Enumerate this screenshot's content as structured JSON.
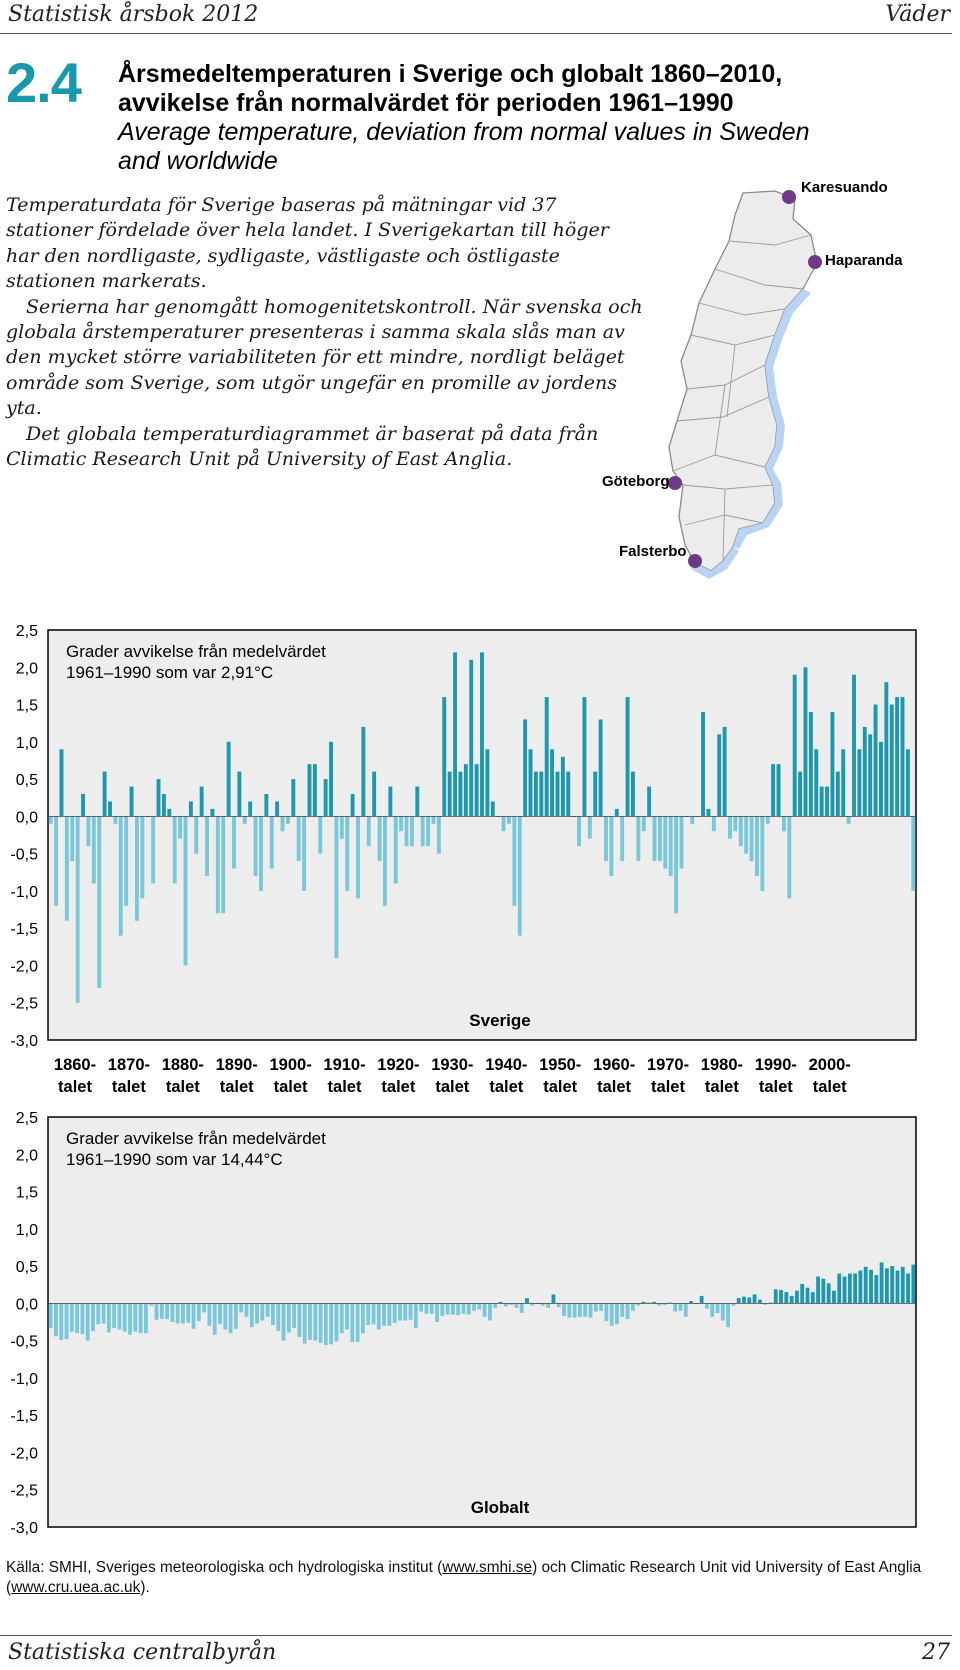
{
  "header": {
    "left": "Statistisk årsbok 2012",
    "right": "Väder"
  },
  "figure": {
    "number": "2.4",
    "title_sv_1": "Årsmedeltemperaturen i Sverige och globalt 1860–2010,",
    "title_sv_2": "avvikelse från normalvärdet för perioden 1961–1990",
    "title_en_1": "Average temperature, deviation from normal values in Sweden",
    "title_en_2": "and worldwide"
  },
  "intro": {
    "p1": "Temperaturdata för Sverige baseras på mätningar vid 37 stationer fördelade över hela landet. I Sverigekartan till höger har den nordligaste, sydligaste, västligaste och östligaste stationen markerats.",
    "p2": "Serierna har genomgått homogenitetskontroll. När svenska och globala årstemperaturer presenteras i samma skala slås man av den mycket större variabiliteten för ett mindre, nordligt beläget område som Sverige, som utgör ungefär en promille av jordens yta.",
    "p3": "Det globala temperaturdiagrammet är baserat på data från Climatic Research Unit på University of East Anglia."
  },
  "map": {
    "stations": [
      {
        "name": "Karesuando"
      },
      {
        "name": "Haparanda"
      },
      {
        "name": "Göteborg"
      },
      {
        "name": "Falsterbo"
      }
    ],
    "colors": {
      "land": "#ececec",
      "border": "#8a8a8a",
      "water": "#b9d4f2",
      "marker": "#6d3b83"
    }
  },
  "chart_data": [
    {
      "type": "bar",
      "title": "Sverige",
      "annotation_1": "Grader avvikelse från medelvärdet",
      "annotation_2": "1961–1990 som var 2,91°C",
      "x_start": 1860,
      "x_end": 2011,
      "decade_labels": [
        [
          "1860-",
          "talet"
        ],
        [
          "1870-",
          "talet"
        ],
        [
          "1880-",
          "talet"
        ],
        [
          "1890-",
          "talet"
        ],
        [
          "1900-",
          "talet"
        ],
        [
          "1910-",
          "talet"
        ],
        [
          "1920-",
          "talet"
        ],
        [
          "1930-",
          "talet"
        ],
        [
          "1940-",
          "talet"
        ],
        [
          "1950-",
          "talet"
        ],
        [
          "1960-",
          "talet"
        ],
        [
          "1970-",
          "talet"
        ],
        [
          "1980-",
          "talet"
        ],
        [
          "1990-",
          "talet"
        ],
        [
          "2000-",
          "talet"
        ]
      ],
      "y_ticks": [
        "2,5",
        "2,0",
        "1,5",
        "1,0",
        "0,5",
        "0,0",
        "-0,5",
        "-1,0",
        "-1,5",
        "-2,0",
        "-2,5",
        "-3,0"
      ],
      "ylim": [
        -3.0,
        2.5
      ],
      "grid": false,
      "colors": {
        "positive": "#1c97ad",
        "negative": "#79c7d8",
        "plot_bg": "#ededed"
      },
      "values": [
        -0.1,
        -1.2,
        0.9,
        -1.4,
        -0.6,
        -2.5,
        0.3,
        -0.4,
        -0.9,
        -2.3,
        0.6,
        0.2,
        -0.1,
        -1.6,
        -1.2,
        0.4,
        -1.4,
        -1.1,
        0.0,
        -0.9,
        0.5,
        0.3,
        0.1,
        -0.9,
        -0.3,
        -2.0,
        0.2,
        -0.5,
        0.4,
        -0.8,
        0.1,
        -1.3,
        -1.3,
        1.0,
        -0.7,
        0.6,
        -0.1,
        0.2,
        -0.8,
        -1.0,
        0.3,
        -0.7,
        0.2,
        -0.2,
        -0.1,
        0.5,
        -0.6,
        -1.0,
        0.7,
        0.7,
        -0.5,
        0.5,
        1.0,
        -1.9,
        -0.3,
        -1.0,
        0.3,
        -1.1,
        1.2,
        -0.4,
        0.6,
        -0.6,
        -1.2,
        0.4,
        -0.9,
        -0.2,
        -0.4,
        -0.4,
        0.4,
        -0.4,
        -0.4,
        -0.1,
        -0.5,
        1.6,
        0.6,
        2.2,
        0.6,
        0.7,
        2.1,
        0.7,
        2.2,
        0.9,
        0.2,
        0.0,
        -0.2,
        -0.1,
        -1.2,
        -1.6,
        1.3,
        0.9,
        0.6,
        0.6,
        1.6,
        0.9,
        0.6,
        0.8,
        0.6,
        0.0,
        -0.4,
        1.6,
        -0.3,
        0.6,
        1.3,
        -0.6,
        -0.8,
        0.1,
        -0.6,
        1.6,
        0.6,
        -0.6,
        -0.2,
        0.4,
        -0.6,
        -0.6,
        -0.7,
        -0.8,
        -1.3,
        -0.7,
        0.0,
        -0.1,
        0.0,
        1.4,
        0.1,
        -0.2,
        1.1,
        1.2,
        -0.3,
        -0.2,
        -0.4,
        -0.5,
        -0.6,
        -0.8,
        -1.0,
        -0.1,
        0.7,
        0.7,
        -0.2,
        -1.1,
        1.9,
        0.6,
        2.0,
        1.4,
        0.9,
        0.4,
        0.4,
        1.4,
        0.6,
        0.9,
        -0.1,
        1.9,
        0.9,
        1.2,
        1.1,
        1.5,
        1.0,
        1.8,
        1.5,
        1.6,
        1.6,
        0.9,
        -1.0
      ]
    },
    {
      "type": "bar",
      "title": "Globalt",
      "annotation_1": "Grader avvikelse från medelvärdet",
      "annotation_2": "1961–1990 som var 14,44°C",
      "x_start": 1860,
      "x_end": 2011,
      "y_ticks": [
        "2,5",
        "2,0",
        "1,5",
        "1,0",
        "0,5",
        "0,0",
        "-0,5",
        "-1,0",
        "-1,5",
        "-2,0",
        "-2,5",
        "-3,0"
      ],
      "ylim": [
        -3.0,
        2.5
      ],
      "grid": false,
      "colors": {
        "positive": "#1c97ad",
        "negative": "#79c7d8",
        "plot_bg": "#ededed"
      },
      "values": [
        -0.33,
        -0.44,
        -0.49,
        -0.48,
        -0.38,
        -0.4,
        -0.41,
        -0.5,
        -0.37,
        -0.28,
        -0.27,
        -0.39,
        -0.33,
        -0.35,
        -0.38,
        -0.42,
        -0.38,
        -0.4,
        -0.4,
        -0.03,
        -0.22,
        -0.21,
        -0.21,
        -0.25,
        -0.27,
        -0.27,
        -0.26,
        -0.34,
        -0.24,
        -0.12,
        -0.3,
        -0.42,
        -0.28,
        -0.35,
        -0.4,
        -0.34,
        -0.12,
        -0.18,
        -0.32,
        -0.27,
        -0.23,
        -0.18,
        -0.29,
        -0.37,
        -0.5,
        -0.39,
        -0.33,
        -0.45,
        -0.54,
        -0.49,
        -0.5,
        -0.53,
        -0.56,
        -0.55,
        -0.51,
        -0.4,
        -0.35,
        -0.52,
        -0.52,
        -0.4,
        -0.29,
        -0.28,
        -0.35,
        -0.3,
        -0.3,
        -0.26,
        -0.23,
        -0.23,
        -0.22,
        -0.33,
        -0.11,
        -0.14,
        -0.14,
        -0.25,
        -0.17,
        -0.15,
        -0.15,
        -0.16,
        -0.14,
        -0.15,
        -0.1,
        -0.08,
        -0.18,
        -0.23,
        -0.06,
        0.02,
        -0.04,
        -0.02,
        -0.06,
        -0.13,
        0.07,
        -0.03,
        0.0,
        -0.03,
        -0.06,
        0.12,
        -0.05,
        -0.17,
        -0.19,
        -0.19,
        -0.18,
        -0.18,
        -0.19,
        -0.11,
        -0.1,
        -0.24,
        -0.3,
        -0.28,
        -0.18,
        -0.21,
        -0.1,
        -0.03,
        0.02,
        0.01,
        0.02,
        -0.03,
        -0.02,
        0.01,
        -0.11,
        -0.1,
        -0.18,
        0.03,
        0.0,
        0.1,
        -0.07,
        -0.18,
        -0.13,
        -0.23,
        -0.32,
        -0.03,
        0.07,
        0.09,
        0.08,
        0.12,
        0.05,
        -0.02,
        0.01,
        0.19,
        0.18,
        0.15,
        0.1,
        0.17,
        0.26,
        0.21,
        0.15,
        0.36,
        0.33,
        0.27,
        0.17,
        0.4,
        0.36,
        0.4,
        0.4,
        0.44,
        0.49,
        0.45,
        0.38,
        0.55,
        0.47,
        0.5,
        0.44,
        0.49,
        0.4,
        0.52
      ]
    }
  ],
  "source": {
    "prefix": "Källa: SMHI, Sveriges meteorologiska och hydrologiska institut (",
    "link1": "www.smhi.se",
    "middle": ") och Climatic Research Unit vid University of East Anglia (",
    "link2": "www.cru.uea.ac.uk",
    "suffix": ")."
  },
  "footer": {
    "left": "Statistiska centralbyrån",
    "right": "27"
  }
}
